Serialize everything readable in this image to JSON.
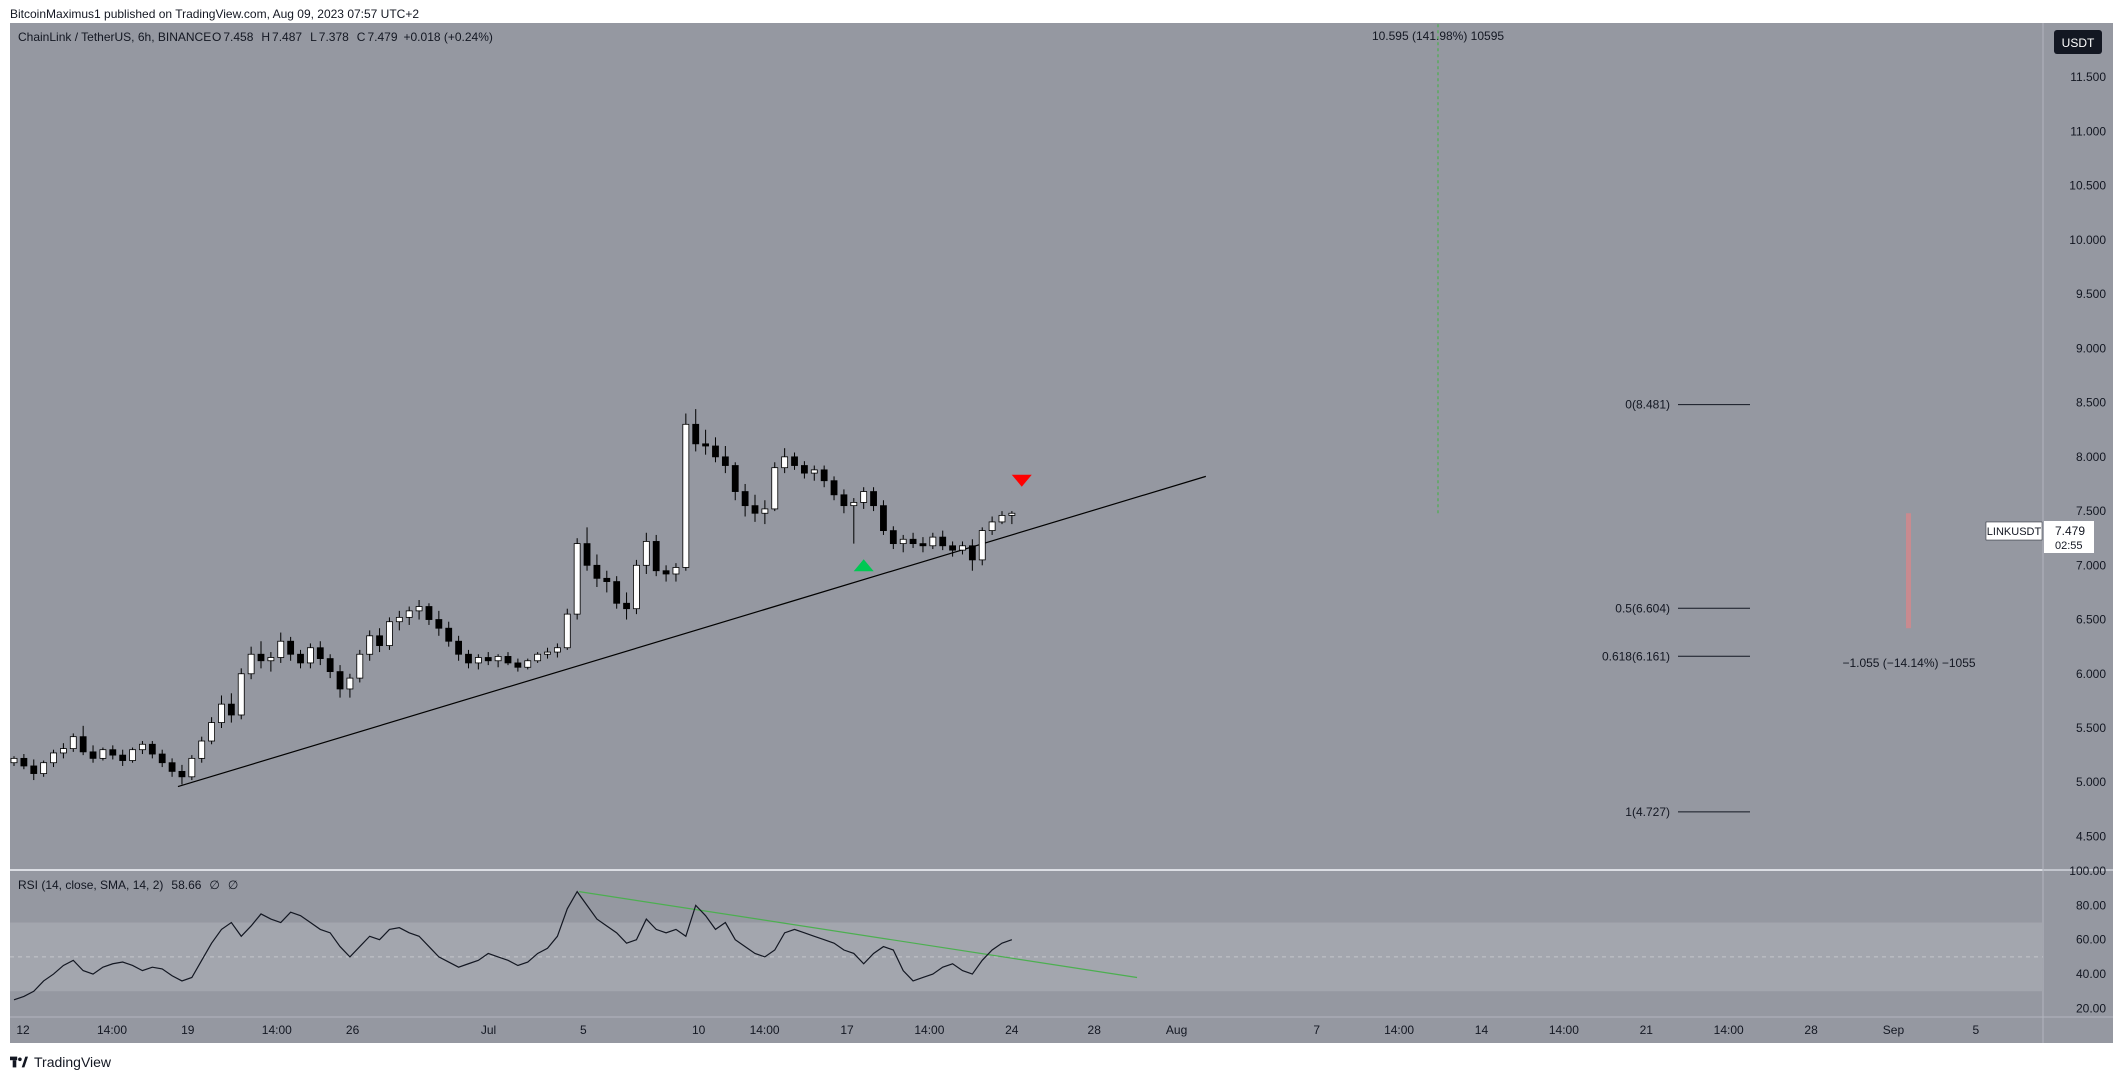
{
  "header": {
    "publisher_line": "BitcoinMaximus1 published on TradingView.com, Aug 09, 2023 07:57 UTC+2"
  },
  "legend": {
    "symbol": "ChainLink / TetherUS, 6h, BINANCE",
    "o_label": "O",
    "o_value": "7.458",
    "h_label": "H",
    "h_value": "7.487",
    "l_label": "L",
    "l_value": "7.378",
    "c_label": "C",
    "c_value": "7.479",
    "change": "+0.018 (+0.24%)"
  },
  "currency_button": "USDT",
  "price_tag": {
    "symbol": "LINKUSDT",
    "price": "7.479",
    "countdown": "02:55"
  },
  "rsi_legend": {
    "label": "RSI (14, close, SMA, 14, 2)",
    "value": "58.66",
    "extra1": "∅",
    "extra2": "∅"
  },
  "annotations": {
    "target": "10.595 (141.98%) 10595",
    "drop": "−1.055 (−14.14%) −1055"
  },
  "colors": {
    "background": "#9598a1",
    "candle_up": "#ffffff",
    "candle_down": "#000000",
    "trendline": "#000000",
    "rsi_trendline": "#4caf50",
    "arrow_up": "#00c853",
    "arrow_down": "#ff0000",
    "target_line": "#4caf50",
    "drop_bar": "#c98a8f"
  },
  "chart_data": {
    "type": "candlestick",
    "symbol": "LINKUSDT",
    "timeframe": "6h",
    "price_axis": {
      "min": 4.2,
      "max": 12.0,
      "ticks": [
        "11.500",
        "11.000",
        "10.500",
        "10.000",
        "9.500",
        "9.000",
        "8.500",
        "8.000",
        "7.500",
        "7.000",
        "6.500",
        "6.000",
        "5.500",
        "5.000",
        "4.500"
      ]
    },
    "rsi_axis": {
      "min": 15,
      "max": 100,
      "ticks": [
        "100.00",
        "80.00",
        "60.00",
        "40.00",
        "20.00"
      ],
      "band": [
        30,
        70
      ],
      "midline": 50
    },
    "time_axis_labels": [
      {
        "label": "12",
        "day": 0
      },
      {
        "label": "14:00",
        "day": 1.08
      },
      {
        "label": "19",
        "day": 2.0
      },
      {
        "label": "14:00",
        "day": 3.08
      },
      {
        "label": "26",
        "day": 4.0
      },
      {
        "label": "Jul",
        "day": 5.65
      },
      {
        "label": "5",
        "day": 6.8
      },
      {
        "label": "10",
        "day": 8.2
      },
      {
        "label": "14:00",
        "day": 9.0
      },
      {
        "label": "17",
        "day": 10.0
      },
      {
        "label": "14:00",
        "day": 11.0
      },
      {
        "label": "24",
        "day": 12.0
      },
      {
        "label": "28",
        "day": 13.0
      },
      {
        "label": "Aug",
        "day": 14.0
      },
      {
        "label": "7",
        "day": 15.7
      },
      {
        "label": "14:00",
        "day": 16.7
      },
      {
        "label": "14",
        "day": 17.7
      },
      {
        "label": "14:00",
        "day": 18.7
      },
      {
        "label": "21",
        "day": 19.7
      },
      {
        "label": "14:00",
        "day": 20.7
      },
      {
        "label": "28",
        "day": 21.7
      },
      {
        "label": "Sep",
        "day": 22.7
      },
      {
        "label": "5",
        "day": 23.7
      }
    ],
    "candles": [
      [
        5.18,
        5.24,
        5.15,
        5.22
      ],
      [
        5.22,
        5.26,
        5.12,
        5.15
      ],
      [
        5.15,
        5.21,
        5.02,
        5.08
      ],
      [
        5.08,
        5.2,
        5.05,
        5.18
      ],
      [
        5.18,
        5.3,
        5.14,
        5.27
      ],
      [
        5.27,
        5.36,
        5.22,
        5.31
      ],
      [
        5.31,
        5.45,
        5.28,
        5.42
      ],
      [
        5.42,
        5.52,
        5.25,
        5.28
      ],
      [
        5.28,
        5.34,
        5.18,
        5.22
      ],
      [
        5.22,
        5.32,
        5.2,
        5.3
      ],
      [
        5.3,
        5.34,
        5.21,
        5.25
      ],
      [
        5.25,
        5.3,
        5.15,
        5.2
      ],
      [
        5.2,
        5.32,
        5.18,
        5.3
      ],
      [
        5.3,
        5.38,
        5.26,
        5.35
      ],
      [
        5.35,
        5.38,
        5.22,
        5.26
      ],
      [
        5.26,
        5.3,
        5.14,
        5.18
      ],
      [
        5.18,
        5.22,
        5.05,
        5.1
      ],
      [
        5.1,
        5.16,
        4.98,
        5.05
      ],
      [
        5.05,
        5.25,
        5.02,
        5.22
      ],
      [
        5.22,
        5.42,
        5.18,
        5.38
      ],
      [
        5.38,
        5.6,
        5.35,
        5.55
      ],
      [
        5.55,
        5.8,
        5.5,
        5.72
      ],
      [
        5.72,
        5.82,
        5.55,
        5.62
      ],
      [
        5.62,
        6.05,
        5.58,
        6.0
      ],
      [
        6.0,
        6.25,
        5.95,
        6.18
      ],
      [
        6.18,
        6.3,
        6.05,
        6.12
      ],
      [
        6.12,
        6.2,
        6.02,
        6.15
      ],
      [
        6.15,
        6.38,
        6.1,
        6.3
      ],
      [
        6.3,
        6.34,
        6.12,
        6.18
      ],
      [
        6.18,
        6.22,
        6.05,
        6.1
      ],
      [
        6.1,
        6.28,
        6.05,
        6.24
      ],
      [
        6.24,
        6.3,
        6.08,
        6.14
      ],
      [
        6.14,
        6.18,
        5.96,
        6.02
      ],
      [
        6.02,
        6.08,
        5.78,
        5.86
      ],
      [
        5.86,
        6.0,
        5.78,
        5.96
      ],
      [
        5.96,
        6.22,
        5.92,
        6.18
      ],
      [
        6.18,
        6.4,
        6.12,
        6.35
      ],
      [
        6.35,
        6.42,
        6.2,
        6.26
      ],
      [
        6.26,
        6.52,
        6.22,
        6.48
      ],
      [
        6.48,
        6.58,
        6.4,
        6.52
      ],
      [
        6.52,
        6.62,
        6.45,
        6.58
      ],
      [
        6.58,
        6.68,
        6.5,
        6.62
      ],
      [
        6.62,
        6.65,
        6.45,
        6.5
      ],
      [
        6.5,
        6.58,
        6.35,
        6.42
      ],
      [
        6.42,
        6.48,
        6.25,
        6.3
      ],
      [
        6.3,
        6.35,
        6.12,
        6.18
      ],
      [
        6.18,
        6.22,
        6.05,
        6.1
      ],
      [
        6.1,
        6.18,
        6.04,
        6.15
      ],
      [
        6.15,
        6.2,
        6.08,
        6.12
      ],
      [
        6.12,
        6.18,
        6.06,
        6.16
      ],
      [
        6.16,
        6.2,
        6.08,
        6.1
      ],
      [
        6.1,
        6.14,
        6.02,
        6.06
      ],
      [
        6.06,
        6.14,
        6.04,
        6.12
      ],
      [
        6.12,
        6.2,
        6.1,
        6.18
      ],
      [
        6.18,
        6.24,
        6.14,
        6.2
      ],
      [
        6.2,
        6.28,
        6.15,
        6.24
      ],
      [
        6.24,
        6.6,
        6.22,
        6.55
      ],
      [
        6.55,
        7.25,
        6.5,
        7.2
      ],
      [
        7.2,
        7.35,
        6.95,
        7.0
      ],
      [
        7.0,
        7.1,
        6.8,
        6.88
      ],
      [
        6.88,
        6.95,
        6.75,
        6.85
      ],
      [
        6.85,
        6.9,
        6.6,
        6.65
      ],
      [
        6.65,
        6.75,
        6.5,
        6.6
      ],
      [
        6.6,
        7.05,
        6.55,
        7.0
      ],
      [
        7.0,
        7.3,
        6.92,
        7.22
      ],
      [
        7.22,
        7.28,
        6.9,
        6.95
      ],
      [
        6.95,
        7.0,
        6.85,
        6.92
      ],
      [
        6.92,
        7.02,
        6.85,
        6.98
      ],
      [
        6.98,
        8.4,
        6.95,
        8.3
      ],
      [
        8.3,
        8.44,
        8.05,
        8.12
      ],
      [
        8.12,
        8.25,
        8.02,
        8.1
      ],
      [
        8.1,
        8.18,
        7.95,
        8.0
      ],
      [
        8.0,
        8.1,
        7.85,
        7.92
      ],
      [
        7.92,
        7.95,
        7.6,
        7.68
      ],
      [
        7.68,
        7.75,
        7.45,
        7.55
      ],
      [
        7.55,
        7.65,
        7.4,
        7.48
      ],
      [
        7.48,
        7.6,
        7.38,
        7.52
      ],
      [
        7.52,
        7.95,
        7.5,
        7.9
      ],
      [
        7.9,
        8.08,
        7.85,
        8.0
      ],
      [
        8.0,
        8.04,
        7.88,
        7.92
      ],
      [
        7.92,
        7.96,
        7.8,
        7.85
      ],
      [
        7.85,
        7.92,
        7.78,
        7.88
      ],
      [
        7.88,
        7.92,
        7.72,
        7.78
      ],
      [
        7.78,
        7.82,
        7.6,
        7.65
      ],
      [
        7.65,
        7.7,
        7.48,
        7.55
      ],
      [
        7.55,
        7.62,
        7.2,
        7.58
      ],
      [
        7.58,
        7.72,
        7.52,
        7.68
      ],
      [
        7.68,
        7.72,
        7.5,
        7.55
      ],
      [
        7.55,
        7.6,
        7.28,
        7.32
      ],
      [
        7.32,
        7.36,
        7.15,
        7.2
      ],
      [
        7.2,
        7.28,
        7.12,
        7.24
      ],
      [
        7.24,
        7.3,
        7.16,
        7.2
      ],
      [
        7.2,
        7.26,
        7.12,
        7.18
      ],
      [
        7.18,
        7.3,
        7.15,
        7.26
      ],
      [
        7.26,
        7.32,
        7.14,
        7.18
      ],
      [
        7.18,
        7.22,
        7.08,
        7.14
      ],
      [
        7.14,
        7.22,
        7.1,
        7.18
      ],
      [
        7.18,
        7.24,
        6.95,
        7.05
      ],
      [
        7.05,
        7.35,
        7.0,
        7.32
      ],
      [
        7.32,
        7.45,
        7.28,
        7.4
      ],
      [
        7.4,
        7.5,
        7.38,
        7.46
      ],
      [
        7.46,
        7.5,
        7.38,
        7.48
      ]
    ],
    "rsi": [
      25,
      27,
      30,
      36,
      40,
      45,
      48,
      42,
      40,
      44,
      46,
      47,
      45,
      42,
      44,
      43,
      39,
      36,
      38,
      48,
      58,
      66,
      70,
      62,
      68,
      75,
      72,
      70,
      76,
      74,
      70,
      66,
      64,
      56,
      50,
      56,
      62,
      60,
      66,
      67,
      64,
      62,
      56,
      50,
      47,
      44,
      46,
      48,
      52,
      50,
      48,
      45,
      47,
      52,
      55,
      62,
      78,
      88,
      80,
      72,
      68,
      64,
      58,
      60,
      72,
      66,
      64,
      66,
      62,
      80,
      74,
      66,
      70,
      60,
      56,
      52,
      50,
      54,
      64,
      66,
      64,
      62,
      60,
      58,
      54,
      52,
      46,
      52,
      56,
      54,
      42,
      36,
      38,
      40,
      44,
      46,
      42,
      40,
      48,
      54,
      58,
      60
    ],
    "support_line": {
      "start": {
        "candle": 17,
        "price": 4.96
      },
      "end": {
        "candle": 118,
        "price": 7.82
      }
    },
    "rsi_trendline": {
      "start": {
        "candle": 57,
        "rsi": 88
      },
      "end": {
        "candle": 108,
        "rsi": 38
      }
    },
    "fib_levels": [
      {
        "label": "0(8.481)",
        "price": 8.481
      },
      {
        "label": "0.5(6.604)",
        "price": 6.604
      },
      {
        "label": "0.618(6.161)",
        "price": 6.161
      },
      {
        "label": "1(4.727)",
        "price": 4.727
      }
    ],
    "markers": [
      {
        "type": "up-arrow",
        "candle": 86,
        "price": 7.0
      },
      {
        "type": "down-arrow",
        "candle": 102,
        "price": 7.78
      }
    ],
    "measure_target": {
      "from": 7.48,
      "to": 12.0
    },
    "measure_drop": {
      "from": 7.48,
      "to": 6.42
    }
  },
  "footer": {
    "brand": "TradingView"
  }
}
